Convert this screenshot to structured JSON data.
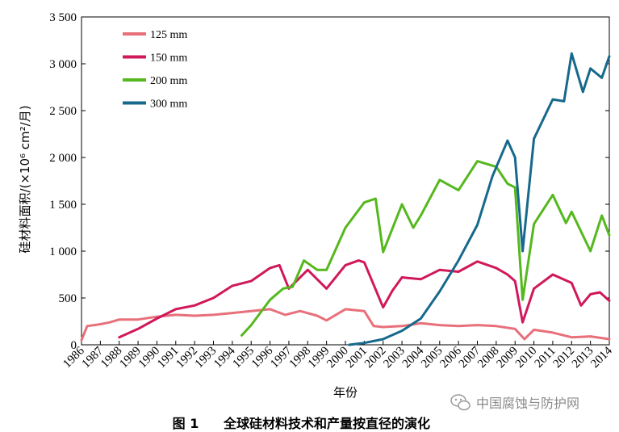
{
  "chart_data": {
    "type": "line",
    "title": "",
    "xlabel": "年份",
    "ylabel": "硅材料面积/(×10⁶ cm²/月)",
    "ylim": [
      0,
      3500
    ],
    "xlim": [
      1986,
      2014
    ],
    "y_ticks": [
      0,
      500,
      1000,
      1500,
      2000,
      2500,
      3000,
      3500
    ],
    "y_tick_labels": [
      "0",
      "500",
      "1 000",
      "1 500",
      "2 000",
      "2 500",
      "3 000",
      "3 500"
    ],
    "x_tick_labels": [
      "1986",
      "1987",
      "1988",
      "1989",
      "1990",
      "1991",
      "1992",
      "1993",
      "1994",
      "1995",
      "1996",
      "1997",
      "1998",
      "1999",
      "2000",
      "2001",
      "2002",
      "2003",
      "2004",
      "2005",
      "2006",
      "2007",
      "2008",
      "2009",
      "2010",
      "2011",
      "2012",
      "2013",
      "2014"
    ],
    "legend_position": "top-left",
    "series": [
      {
        "name": "125 mm",
        "color": "#e8707a",
        "x": [
          1986,
          1986.3,
          1987,
          1987.5,
          1988,
          1989,
          1990,
          1991,
          1992,
          1993,
          1994,
          1995,
          1996,
          1996.8,
          1997.6,
          1998.5,
          1999,
          2000,
          2001,
          2001.5,
          2002,
          2003,
          2004,
          2005,
          2006,
          2007,
          2008,
          2009,
          2009.5,
          2010,
          2011,
          2012,
          2013,
          2014
        ],
        "values": [
          50,
          200,
          220,
          240,
          270,
          270,
          300,
          320,
          310,
          320,
          340,
          360,
          380,
          320,
          360,
          310,
          260,
          380,
          360,
          200,
          190,
          200,
          230,
          210,
          200,
          210,
          200,
          170,
          60,
          160,
          130,
          80,
          90,
          60
        ]
      },
      {
        "name": "150 mm",
        "color": "#d0185a",
        "x": [
          1988,
          1989,
          1990,
          1991,
          1992,
          1993,
          1994,
          1995,
          1996,
          1996.5,
          1997,
          1998,
          1999,
          2000,
          2000.7,
          2001,
          2002,
          2002.5,
          2003,
          2004,
          2005,
          2006,
          2007,
          2008,
          2008.6,
          2009,
          2009.4,
          2010,
          2011,
          2012,
          2012.5,
          2013,
          2013.5,
          2014
        ],
        "values": [
          80,
          170,
          280,
          380,
          420,
          500,
          630,
          680,
          820,
          850,
          600,
          800,
          600,
          850,
          900,
          880,
          400,
          580,
          720,
          700,
          800,
          780,
          890,
          820,
          750,
          680,
          240,
          600,
          750,
          660,
          420,
          540,
          560,
          470
        ]
      },
      {
        "name": "200 mm",
        "color": "#55b81e",
        "x": [
          1994.5,
          1995,
          1996,
          1996.7,
          1997.2,
          1997.8,
          1998.5,
          1999,
          2000,
          2001,
          2001.6,
          2002,
          2003,
          2003.6,
          2004,
          2005,
          2006,
          2007,
          2008,
          2008.6,
          2009,
          2009.4,
          2010,
          2011,
          2011.7,
          2012,
          2013,
          2013.6,
          2014
        ],
        "values": [
          100,
          210,
          480,
          600,
          620,
          900,
          800,
          800,
          1250,
          1520,
          1560,
          990,
          1500,
          1250,
          1380,
          1760,
          1650,
          1960,
          1900,
          1720,
          1680,
          480,
          1290,
          1600,
          1300,
          1420,
          1000,
          1380,
          1170
        ]
      },
      {
        "name": "300 mm",
        "color": "#17698c",
        "x": [
          2000.2,
          2001,
          2002,
          2003,
          2004,
          2005,
          2006,
          2007,
          2007.8,
          2008.6,
          2009,
          2009.4,
          2010,
          2011,
          2011.6,
          2012,
          2012.6,
          2013,
          2013.6,
          2014
        ],
        "values": [
          0,
          20,
          60,
          150,
          280,
          570,
          900,
          1280,
          1800,
          2180,
          2000,
          1000,
          2200,
          2620,
          2600,
          3110,
          2700,
          2950,
          2850,
          3080
        ]
      }
    ]
  },
  "caption": {
    "figure_label": "图 1",
    "text": "全球硅材料技术和产量按直径的演化"
  },
  "watermark": {
    "text": "中国腐蚀与防护网",
    "icon": "wechat-icon"
  }
}
